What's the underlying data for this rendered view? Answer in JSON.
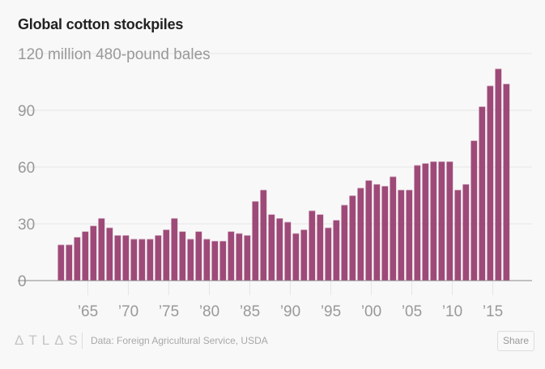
{
  "chart_data": {
    "type": "bar",
    "title": "Global cotton stockpiles",
    "ylabel": "million 480-pound bales",
    "top_label": "120 million 480-pound bales",
    "xlabel": "",
    "ylim": [
      0,
      120
    ],
    "yticks": [
      0,
      30,
      60,
      90
    ],
    "grid": true,
    "xticks": [
      1965,
      1970,
      1975,
      1980,
      1985,
      1990,
      1995,
      2000,
      2005,
      2010,
      2015
    ],
    "xtick_labels": [
      "’65",
      "’70",
      "’75",
      "’80",
      "’85",
      "’90",
      "’95",
      "’00",
      "’05",
      "’10",
      "’15"
    ],
    "categories": [
      1961,
      1962,
      1963,
      1964,
      1965,
      1966,
      1967,
      1968,
      1969,
      1970,
      1971,
      1972,
      1973,
      1974,
      1975,
      1976,
      1977,
      1978,
      1979,
      1980,
      1981,
      1982,
      1983,
      1984,
      1985,
      1986,
      1987,
      1988,
      1989,
      1990,
      1991,
      1992,
      1993,
      1994,
      1995,
      1996,
      1997,
      1998,
      1999,
      2000,
      2001,
      2002,
      2003,
      2004,
      2005,
      2006,
      2007,
      2008,
      2009,
      2010,
      2011,
      2012,
      2013,
      2014,
      2015,
      2016
    ],
    "values": [
      19,
      19,
      23,
      26,
      29,
      33,
      28,
      24,
      24,
      22,
      22,
      22,
      24,
      27,
      33,
      26,
      22,
      26,
      22,
      21,
      21,
      26,
      25,
      24,
      42,
      48,
      35,
      33,
      31,
      25,
      27,
      37,
      35,
      28,
      32,
      40,
      45,
      49,
      53,
      51,
      50,
      55,
      48,
      48,
      61,
      62,
      63,
      63,
      63,
      48,
      51,
      74,
      92,
      103,
      112,
      104
    ],
    "bar_color": "#9e4a78"
  },
  "footer": {
    "logo": "ATLAS",
    "source": "Data: Foreign Agricultural Service, USDA",
    "share_label": "Share"
  }
}
